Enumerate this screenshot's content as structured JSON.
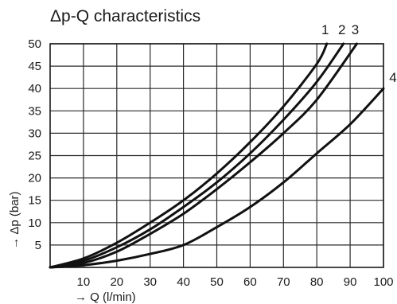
{
  "chart_data": {
    "type": "line",
    "title": "Δp-Q characteristics",
    "xlabel": "→ Q (l/min)",
    "ylabel": "→ Δp (bar)",
    "xlim": [
      0,
      100
    ],
    "ylim": [
      0,
      50
    ],
    "xticks": [
      10,
      20,
      30,
      40,
      50,
      60,
      70,
      80,
      90,
      100
    ],
    "yticks": [
      5,
      10,
      15,
      20,
      25,
      30,
      35,
      40,
      45,
      50
    ],
    "grid": true,
    "series": [
      {
        "name": "1",
        "x": [
          0,
          10,
          20,
          30,
          40,
          50,
          60,
          70,
          80,
          83
        ],
        "y": [
          0,
          2,
          5.5,
          10,
          15,
          21,
          28,
          36,
          45.5,
          50
        ]
      },
      {
        "name": "2",
        "x": [
          0,
          10,
          20,
          30,
          40,
          50,
          60,
          70,
          80,
          88
        ],
        "y": [
          0,
          1.5,
          4.5,
          8.5,
          13.5,
          19,
          25.5,
          33,
          41.5,
          50
        ]
      },
      {
        "name": "3",
        "x": [
          0,
          10,
          20,
          30,
          40,
          50,
          60,
          70,
          80,
          92
        ],
        "y": [
          0,
          1,
          3.5,
          7.5,
          12,
          17.5,
          23.5,
          30,
          37.5,
          50
        ]
      },
      {
        "name": "4",
        "x": [
          0,
          10,
          20,
          30,
          40,
          50,
          60,
          70,
          80,
          90,
          100
        ],
        "y": [
          0,
          0.5,
          1.5,
          3,
          5,
          9,
          13.5,
          19,
          25.5,
          32,
          40
        ]
      }
    ]
  }
}
